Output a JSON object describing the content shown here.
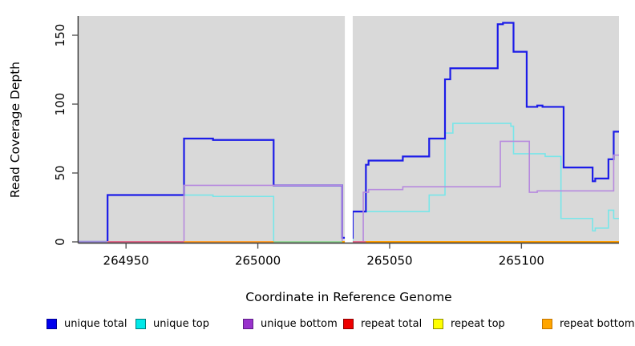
{
  "chart_data": {
    "type": "line",
    "step_style": "step-after",
    "title": "",
    "xlabel": "Coordinate in Reference Genome",
    "ylabel": "Read Coverage Depth",
    "xlim": [
      264932,
      265137
    ],
    "ylim": [
      0,
      164
    ],
    "x_ticks": [
      264950,
      265000,
      265050,
      265100
    ],
    "y_ticks": [
      0,
      50,
      100,
      150
    ],
    "grid": false,
    "legend_position": "bottom",
    "plot_background": "#d9d9d9",
    "axis_color": "#333333",
    "tick_color": "#555555",
    "coverage_gap": {
      "from": 265033,
      "to": 265036,
      "color": "#ffffff"
    },
    "series": [
      {
        "name": "unique total",
        "line_color": "#1c1ce8",
        "legend_fill": "#0000ee",
        "legend_border": "#000090",
        "width": 2.2,
        "steps": [
          [
            264932,
            0
          ],
          [
            264943,
            34
          ],
          [
            264972,
            75
          ],
          [
            264983,
            74
          ],
          [
            265006,
            41
          ],
          [
            265032,
            3
          ],
          [
            265036,
            22
          ],
          [
            265041,
            56
          ],
          [
            265042,
            59
          ],
          [
            265055,
            62
          ],
          [
            265065,
            75
          ],
          [
            265071,
            118
          ],
          [
            265073,
            126
          ],
          [
            265091,
            158
          ],
          [
            265093,
            159
          ],
          [
            265097,
            138
          ],
          [
            265102,
            98
          ],
          [
            265106,
            99
          ],
          [
            265108,
            98
          ],
          [
            265116,
            54
          ],
          [
            265127,
            44
          ],
          [
            265128,
            46
          ],
          [
            265133,
            60
          ],
          [
            265135,
            80
          ]
        ]
      },
      {
        "name": "unique top",
        "line_color": "#78e6e9",
        "legend_fill": "#00e8e8",
        "legend_border": "#007d7d",
        "width": 1.6,
        "steps": [
          [
            264932,
            0
          ],
          [
            264943,
            34
          ],
          [
            264983,
            33
          ],
          [
            265006,
            0
          ],
          [
            265036,
            22
          ],
          [
            265065,
            34
          ],
          [
            265071,
            79
          ],
          [
            265074,
            86
          ],
          [
            265096,
            84
          ],
          [
            265097,
            64
          ],
          [
            265109,
            62
          ],
          [
            265115,
            17
          ],
          [
            265127,
            8
          ],
          [
            265128,
            10
          ],
          [
            265133,
            23
          ],
          [
            265135,
            17
          ]
        ]
      },
      {
        "name": "unique bottom",
        "line_color": "#b78ade",
        "legend_fill": "#9932cc",
        "legend_border": "#5e1d86",
        "width": 1.6,
        "steps": [
          [
            264932,
            0
          ],
          [
            264972,
            41
          ],
          [
            265032,
            0
          ],
          [
            265040,
            36
          ],
          [
            265042,
            38
          ],
          [
            265055,
            40
          ],
          [
            265092,
            73
          ],
          [
            265103,
            36
          ],
          [
            265106,
            37
          ],
          [
            265135,
            63
          ]
        ]
      },
      {
        "name": "repeat total",
        "line_color": "#ee0000",
        "legend_fill": "#ee0000",
        "legend_border": "#8b0000",
        "width": 1.6,
        "steps": [
          [
            264932,
            0
          ]
        ]
      },
      {
        "name": "repeat top",
        "line_color": "#ffff00",
        "legend_fill": "#ffff00",
        "legend_border": "#8f8f00",
        "width": 1.6,
        "steps": [
          [
            264932,
            0
          ]
        ]
      },
      {
        "name": "repeat bottom",
        "line_color": "#ff9e00",
        "legend_fill": "#ffa500",
        "legend_border": "#c27400",
        "width": 2,
        "steps": [
          [
            264932,
            0
          ]
        ]
      }
    ],
    "baseline_blend_segments": [
      {
        "from": 264932,
        "to": 264943,
        "color": "#9d8fd8"
      },
      {
        "from": 264943,
        "to": 264972,
        "color": "#e06a8c"
      },
      {
        "from": 264972,
        "to": 265006,
        "color": "#ffa030"
      },
      {
        "from": 265006,
        "to": 265032,
        "color": "#98d59a"
      },
      {
        "from": 265036,
        "to": 265041,
        "color": "#e06a8c"
      },
      {
        "from": 265041,
        "to": 265137,
        "color": "#ff9e00"
      }
    ]
  }
}
